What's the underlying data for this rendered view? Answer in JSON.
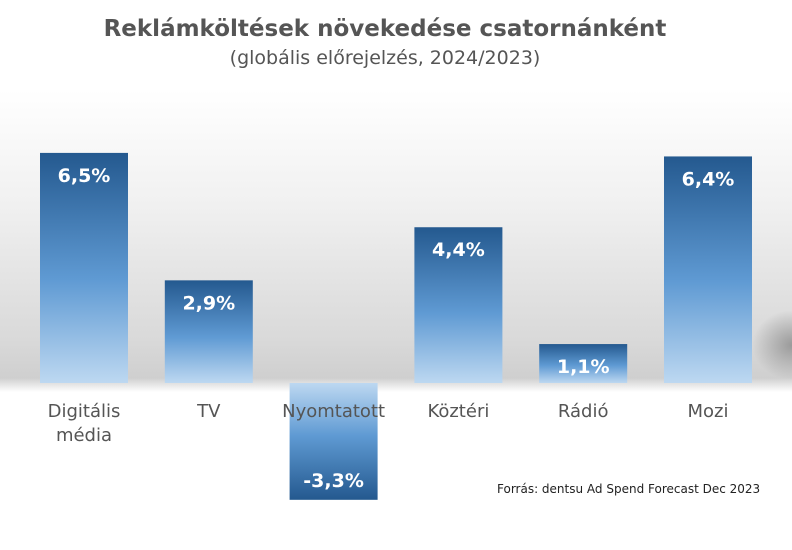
{
  "chart_data": {
    "type": "bar",
    "title": "Reklámköltések növekedése csatornánként",
    "subtitle": "(globális előrejelzés, 2024/2023)",
    "categories": [
      "Digitális média",
      "TV",
      "Nyomtatott",
      "Köztéri",
      "Rádió",
      "Mozi"
    ],
    "category_lines": [
      [
        "Digitális",
        "média"
      ],
      [
        "TV"
      ],
      [
        "Nyomtatott"
      ],
      [
        "Köztéri"
      ],
      [
        "Rádió"
      ],
      [
        "Mozi"
      ]
    ],
    "values": [
      6.5,
      2.9,
      -3.3,
      4.4,
      1.1,
      6.4
    ],
    "data_labels": [
      "6,5%",
      "2,9%",
      "-3,3%",
      "4,4%",
      "1,1%",
      "6,4%"
    ],
    "unit": "%",
    "xlabel": "",
    "ylabel": "",
    "grid": false,
    "legend": "none",
    "colors": {
      "bar_dark": "#24598f",
      "bar_light": "#bdd8f1",
      "label": "#ffffff",
      "category_text": "#555555"
    },
    "source": "Forrás: dentsu Ad Spend Forecast Dec 2023"
  }
}
